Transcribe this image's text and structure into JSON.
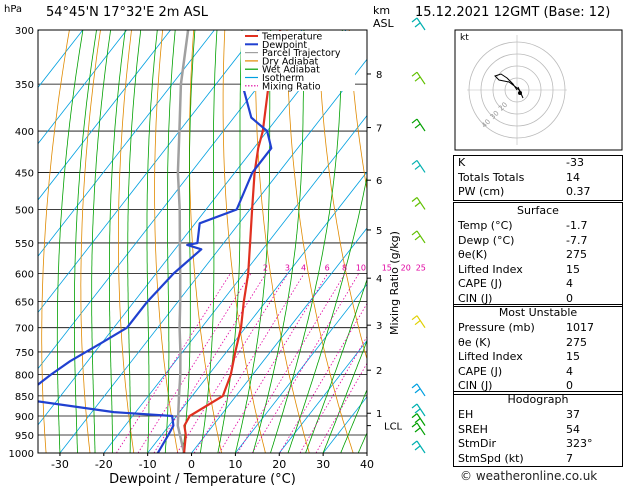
{
  "header": {
    "location": "54°45'N 17°32'E 2m ASL",
    "datetime": "15.12.2021 12GMT (Base: 12)",
    "pressure_unit": "hPa",
    "km_unit": "km",
    "asl_unit": "ASL",
    "copyright": "© weatheronline.co.uk"
  },
  "legend": [
    "Temperature",
    "Dewpoint",
    "Parcel Trajectory",
    "Dry Adiabat",
    "Wet Adiabat",
    "Isotherm",
    "Mixing Ratio"
  ],
  "colors": {
    "temperature": "#e03020",
    "dewpoint": "#2040d0",
    "parcel": "#a0a0a0",
    "dry_adiabat": "#e08a00",
    "wet_adiabat": "#00a000",
    "isotherm": "#00a0e0",
    "mixing_ratio": "#e000a0"
  },
  "chart_data": {
    "type": "line",
    "title": "",
    "xlabel": "Dewpoint / Temperature (°C)",
    "ylabel_right": "Mixing Ratio (g/kg)",
    "xlim": [
      -35,
      40
    ],
    "ylim": [
      1000,
      300
    ],
    "y_scale": "log",
    "pressure_ticks": [
      300,
      350,
      400,
      450,
      500,
      550,
      600,
      650,
      700,
      750,
      800,
      850,
      900,
      950,
      1000
    ],
    "temp_ticks": [
      -30,
      -20,
      -10,
      0,
      10,
      20,
      30,
      40
    ],
    "km_ticks": [
      {
        "km": "1",
        "p": 893
      },
      {
        "km": "2",
        "p": 790
      },
      {
        "km": "3",
        "p": 695
      },
      {
        "km": "4",
        "p": 608
      },
      {
        "km": "5",
        "p": 530
      },
      {
        "km": "6",
        "p": 460
      },
      {
        "km": "7",
        "p": 396
      },
      {
        "km": "8",
        "p": 340
      }
    ],
    "lcl": {
      "label": "LCL",
      "p": 925
    },
    "mixing_ratio_labels": [
      "2",
      "3",
      "4",
      "6",
      "8",
      "10",
      "15",
      "20",
      "25"
    ],
    "series": [
      {
        "name": "Temperature",
        "points": [
          [
            1000,
            -1.7
          ],
          [
            950,
            -4.5
          ],
          [
            925,
            -6.5
          ],
          [
            900,
            -7
          ],
          [
            850,
            -3
          ],
          [
            800,
            -5
          ],
          [
            750,
            -8
          ],
          [
            700,
            -11
          ],
          [
            650,
            -15
          ],
          [
            600,
            -19
          ],
          [
            550,
            -24
          ],
          [
            500,
            -29.5
          ],
          [
            450,
            -35.5
          ],
          [
            420,
            -39
          ],
          [
            400,
            -41
          ],
          [
            350,
            -48
          ],
          [
            300,
            -55
          ]
        ]
      },
      {
        "name": "Dewpoint",
        "points": [
          [
            1000,
            -7.7
          ],
          [
            950,
            -8.5
          ],
          [
            925,
            -9
          ],
          [
            900,
            -11
          ],
          [
            890,
            -25
          ],
          [
            850,
            -54
          ],
          [
            840,
            -48
          ],
          [
            800,
            -46
          ],
          [
            770,
            -44
          ],
          [
            730,
            -40
          ],
          [
            700,
            -37
          ],
          [
            650,
            -37
          ],
          [
            600,
            -36
          ],
          [
            560,
            -34
          ],
          [
            553,
            -38
          ],
          [
            550,
            -36
          ],
          [
            520,
            -39
          ],
          [
            500,
            -33
          ],
          [
            450,
            -36
          ],
          [
            420,
            -36
          ],
          [
            400,
            -40
          ],
          [
            385,
            -46
          ],
          [
            350,
            -54
          ],
          [
            300,
            -60
          ]
        ]
      },
      {
        "name": "Parcel Trajectory",
        "points": [
          [
            1000,
            -1.7
          ],
          [
            925,
            -8
          ],
          [
            850,
            -13
          ],
          [
            800,
            -16.5
          ],
          [
            750,
            -20.5
          ],
          [
            700,
            -25
          ],
          [
            650,
            -29.5
          ],
          [
            600,
            -34.5
          ],
          [
            550,
            -40
          ],
          [
            500,
            -46
          ],
          [
            450,
            -53
          ],
          [
            400,
            -60
          ],
          [
            350,
            -68
          ],
          [
            300,
            -76
          ]
        ]
      }
    ]
  },
  "hodograph": {
    "label": "kt",
    "rings": [
      "10",
      "20",
      "30",
      "40"
    ]
  },
  "indices": {
    "top": [
      {
        "label": "K",
        "value": "-33"
      },
      {
        "label": "Totals Totals",
        "value": "14"
      },
      {
        "label": "PW (cm)",
        "value": "0.37"
      }
    ],
    "surface_title": "Surface",
    "surface": [
      {
        "label": "Temp (°C)",
        "value": "-1.7"
      },
      {
        "label": "Dewp (°C)",
        "value": "-7.7"
      },
      {
        "label": "θe(K)",
        "value": "275"
      },
      {
        "label": "Lifted Index",
        "value": "15"
      },
      {
        "label": "CAPE (J)",
        "value": "4"
      },
      {
        "label": "CIN (J)",
        "value": "0"
      }
    ],
    "unstable_title": "Most Unstable",
    "unstable": [
      {
        "label": "Pressure (mb)",
        "value": "1017"
      },
      {
        "label": "θe (K)",
        "value": "275"
      },
      {
        "label": "Lifted Index",
        "value": "15"
      },
      {
        "label": "CAPE (J)",
        "value": "4"
      },
      {
        "label": "CIN (J)",
        "value": "0"
      }
    ],
    "hodo_title": "Hodograph",
    "hodo": [
      {
        "label": "EH",
        "value": "37"
      },
      {
        "label": "SREH",
        "value": "54"
      },
      {
        "label": "StmDir",
        "value": "323°"
      },
      {
        "label": "StmSpd (kt)",
        "value": "7"
      }
    ]
  }
}
